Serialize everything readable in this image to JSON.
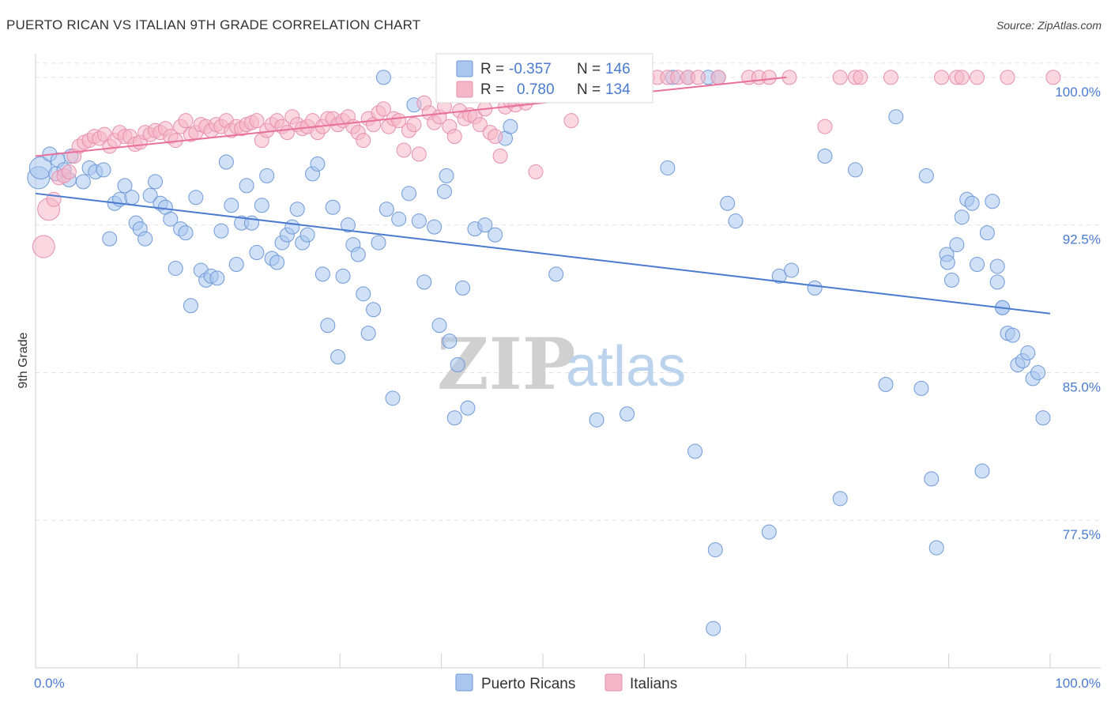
{
  "title": "PUERTO RICAN VS ITALIAN 9TH GRADE CORRELATION CHART",
  "source": "Source: ZipAtlas.com",
  "watermark": {
    "zip": "ZIP",
    "atlas": "atlas"
  },
  "legend": {
    "row1": {
      "r_label": "R =",
      "r_value": "-0.357",
      "n_label": "N =",
      "n_value": "146"
    },
    "row2": {
      "r_label": "R =",
      "r_value": "0.780",
      "n_label": "N =",
      "n_value": "134"
    }
  },
  "bottom_legend": {
    "series1": "Puerto Ricans",
    "series2": "Italians"
  },
  "colors": {
    "blue": "#4a7bd0",
    "blue_fill": "#a9c6ef",
    "pink": "#e8709a",
    "pink_fill": "#f5b6c9",
    "grid": "#e2e2e2"
  },
  "chart_data": {
    "type": "scatter",
    "title": "PUERTO RICAN VS ITALIAN 9TH GRADE CORRELATION CHART",
    "xlabel": "",
    "ylabel": "9th Grade",
    "xlim": [
      0,
      100
    ],
    "ylim": [
      70.0,
      101.2
    ],
    "x_tick_labels": [
      "0.0%",
      "100.0%"
    ],
    "y_ticks": [
      {
        "value": 100.0,
        "label": "100.0%"
      },
      {
        "value": 92.5,
        "label": "92.5%"
      },
      {
        "value": 85.0,
        "label": "85.0%"
      },
      {
        "value": 77.5,
        "label": "77.5%"
      }
    ],
    "grid": true,
    "series": [
      {
        "name": "Puerto Ricans",
        "trend": {
          "x": [
            0,
            100
          ],
          "y": [
            94.1,
            88.0
          ]
        },
        "points": [
          [
            0.3,
            94.9
          ],
          [
            0.5,
            95.4
          ],
          [
            1.4,
            96.1
          ],
          [
            2.0,
            95.1
          ],
          [
            2.2,
            95.8
          ],
          [
            2.8,
            95.3
          ],
          [
            3.3,
            94.8
          ],
          [
            3.5,
            96.0
          ],
          [
            4.7,
            94.7
          ],
          [
            5.3,
            95.4
          ],
          [
            5.9,
            95.2
          ],
          [
            6.7,
            95.3
          ],
          [
            7.3,
            91.8
          ],
          [
            7.8,
            93.6
          ],
          [
            8.3,
            93.8
          ],
          [
            8.8,
            94.5
          ],
          [
            9.5,
            93.9
          ],
          [
            9.9,
            92.6
          ],
          [
            10.3,
            92.3
          ],
          [
            10.8,
            91.8
          ],
          [
            11.3,
            94.0
          ],
          [
            11.8,
            94.7
          ],
          [
            12.3,
            93.6
          ],
          [
            12.8,
            93.4
          ],
          [
            13.3,
            92.8
          ],
          [
            13.8,
            90.3
          ],
          [
            14.3,
            92.3
          ],
          [
            14.8,
            92.1
          ],
          [
            15.3,
            88.4
          ],
          [
            15.8,
            93.9
          ],
          [
            16.3,
            90.2
          ],
          [
            16.8,
            89.7
          ],
          [
            17.3,
            89.9
          ],
          [
            17.9,
            89.8
          ],
          [
            18.3,
            92.2
          ],
          [
            18.8,
            95.7
          ],
          [
            19.3,
            93.5
          ],
          [
            19.8,
            90.5
          ],
          [
            20.3,
            92.6
          ],
          [
            20.8,
            94.5
          ],
          [
            21.3,
            92.6
          ],
          [
            21.8,
            91.1
          ],
          [
            22.3,
            93.5
          ],
          [
            22.8,
            95.0
          ],
          [
            23.3,
            90.8
          ],
          [
            23.8,
            90.6
          ],
          [
            24.3,
            91.6
          ],
          [
            24.8,
            92.0
          ],
          [
            25.3,
            92.4
          ],
          [
            25.8,
            93.3
          ],
          [
            26.3,
            91.6
          ],
          [
            26.8,
            92.0
          ],
          [
            27.3,
            95.1
          ],
          [
            27.8,
            95.6
          ],
          [
            28.3,
            90.0
          ],
          [
            28.8,
            87.4
          ],
          [
            29.3,
            93.4
          ],
          [
            29.8,
            85.8
          ],
          [
            30.3,
            89.9
          ],
          [
            30.8,
            92.5
          ],
          [
            31.3,
            91.5
          ],
          [
            31.8,
            91.0
          ],
          [
            32.3,
            89.0
          ],
          [
            32.8,
            87.0
          ],
          [
            33.3,
            88.2
          ],
          [
            33.8,
            91.6
          ],
          [
            34.3,
            100.0
          ],
          [
            34.6,
            93.3
          ],
          [
            35.2,
            83.7
          ],
          [
            35.8,
            92.8
          ],
          [
            36.8,
            94.1
          ],
          [
            37.3,
            98.6
          ],
          [
            37.8,
            92.7
          ],
          [
            38.3,
            89.6
          ],
          [
            39.3,
            92.4
          ],
          [
            39.8,
            87.4
          ],
          [
            40.3,
            94.2
          ],
          [
            40.5,
            95.0
          ],
          [
            40.8,
            86.6
          ],
          [
            41.3,
            82.7
          ],
          [
            41.6,
            85.4
          ],
          [
            42.1,
            89.3
          ],
          [
            42.6,
            83.2
          ],
          [
            43.3,
            92.3
          ],
          [
            44.3,
            92.5
          ],
          [
            45.3,
            92.0
          ],
          [
            46.3,
            96.9
          ],
          [
            46.8,
            97.5
          ],
          [
            51.3,
            90.0
          ],
          [
            55.3,
            82.6
          ],
          [
            56.8,
            100.0
          ],
          [
            58.3,
            82.9
          ],
          [
            62.3,
            95.4
          ],
          [
            62.8,
            100.0
          ],
          [
            64.3,
            100.0
          ],
          [
            65.0,
            81.0
          ],
          [
            66.3,
            100.0
          ],
          [
            66.8,
            72.0
          ],
          [
            67.0,
            76.0
          ],
          [
            67.3,
            100.0
          ],
          [
            68.2,
            93.6
          ],
          [
            69.0,
            92.7
          ],
          [
            72.3,
            76.9
          ],
          [
            73.3,
            89.9
          ],
          [
            74.5,
            90.2
          ],
          [
            76.8,
            89.3
          ],
          [
            77.8,
            96.0
          ],
          [
            79.3,
            78.6
          ],
          [
            80.8,
            95.3
          ],
          [
            83.8,
            84.4
          ],
          [
            84.8,
            98.0
          ],
          [
            87.3,
            84.2
          ],
          [
            87.8,
            95.0
          ],
          [
            88.3,
            79.6
          ],
          [
            88.8,
            76.1
          ],
          [
            89.8,
            91.0
          ],
          [
            89.9,
            90.6
          ],
          [
            90.3,
            89.7
          ],
          [
            90.8,
            91.5
          ],
          [
            91.3,
            92.9
          ],
          [
            91.8,
            93.8
          ],
          [
            92.3,
            93.6
          ],
          [
            92.8,
            90.5
          ],
          [
            93.3,
            80.0
          ],
          [
            93.8,
            92.1
          ],
          [
            94.3,
            93.7
          ],
          [
            94.8,
            89.6
          ],
          [
            95.3,
            88.3
          ],
          [
            95.8,
            87.0
          ],
          [
            96.3,
            86.9
          ],
          [
            96.8,
            85.4
          ],
          [
            97.3,
            85.6
          ],
          [
            97.8,
            86.0
          ],
          [
            98.3,
            84.7
          ],
          [
            98.8,
            85.0
          ],
          [
            99.3,
            82.7
          ],
          [
            94.8,
            90.4
          ],
          [
            95.3,
            88.3
          ]
        ]
      },
      {
        "name": "Italians",
        "trend": {
          "x": [
            0,
            74
          ],
          "y": [
            96.0,
            100.0
          ]
        },
        "points": [
          [
            0.8,
            91.4
          ],
          [
            1.3,
            93.3
          ],
          [
            1.8,
            93.8
          ],
          [
            2.3,
            94.9
          ],
          [
            2.8,
            95.0
          ],
          [
            3.3,
            95.2
          ],
          [
            3.8,
            96.0
          ],
          [
            4.3,
            96.5
          ],
          [
            4.8,
            96.7
          ],
          [
            5.3,
            96.8
          ],
          [
            5.8,
            97.0
          ],
          [
            6.3,
            96.9
          ],
          [
            6.8,
            97.1
          ],
          [
            7.3,
            96.5
          ],
          [
            7.8,
            96.8
          ],
          [
            8.3,
            97.2
          ],
          [
            8.8,
            97.0
          ],
          [
            9.3,
            97.0
          ],
          [
            9.8,
            96.6
          ],
          [
            10.3,
            96.7
          ],
          [
            10.8,
            97.2
          ],
          [
            11.3,
            97.1
          ],
          [
            11.8,
            97.3
          ],
          [
            12.3,
            97.2
          ],
          [
            12.8,
            97.4
          ],
          [
            13.3,
            97.0
          ],
          [
            13.8,
            96.8
          ],
          [
            14.3,
            97.5
          ],
          [
            14.8,
            97.8
          ],
          [
            15.3,
            97.1
          ],
          [
            15.8,
            97.2
          ],
          [
            16.3,
            97.6
          ],
          [
            16.8,
            97.5
          ],
          [
            17.3,
            97.3
          ],
          [
            17.8,
            97.6
          ],
          [
            18.3,
            97.5
          ],
          [
            18.8,
            97.8
          ],
          [
            19.3,
            97.3
          ],
          [
            19.8,
            97.5
          ],
          [
            20.3,
            97.4
          ],
          [
            20.8,
            97.6
          ],
          [
            21.3,
            97.7
          ],
          [
            21.8,
            97.8
          ],
          [
            22.3,
            96.8
          ],
          [
            22.8,
            97.3
          ],
          [
            23.3,
            97.6
          ],
          [
            23.8,
            97.8
          ],
          [
            24.3,
            97.5
          ],
          [
            24.8,
            97.2
          ],
          [
            25.3,
            98.0
          ],
          [
            25.8,
            97.6
          ],
          [
            26.3,
            97.4
          ],
          [
            26.8,
            97.5
          ],
          [
            27.3,
            97.8
          ],
          [
            27.8,
            97.2
          ],
          [
            28.3,
            97.5
          ],
          [
            28.8,
            97.9
          ],
          [
            29.3,
            97.9
          ],
          [
            29.8,
            97.6
          ],
          [
            30.3,
            97.8
          ],
          [
            30.8,
            98.0
          ],
          [
            31.3,
            97.5
          ],
          [
            31.8,
            97.2
          ],
          [
            32.3,
            96.8
          ],
          [
            32.8,
            97.9
          ],
          [
            33.3,
            97.6
          ],
          [
            33.8,
            98.2
          ],
          [
            34.3,
            98.4
          ],
          [
            34.8,
            97.5
          ],
          [
            35.3,
            97.9
          ],
          [
            35.8,
            97.8
          ],
          [
            36.3,
            96.3
          ],
          [
            36.8,
            97.3
          ],
          [
            37.3,
            97.6
          ],
          [
            37.8,
            96.1
          ],
          [
            38.3,
            98.7
          ],
          [
            38.8,
            98.2
          ],
          [
            39.3,
            97.7
          ],
          [
            39.8,
            98.0
          ],
          [
            40.3,
            98.5
          ],
          [
            40.8,
            97.5
          ],
          [
            41.3,
            97.0
          ],
          [
            41.8,
            98.3
          ],
          [
            42.3,
            97.9
          ],
          [
            42.8,
            98.1
          ],
          [
            43.3,
            98.0
          ],
          [
            43.8,
            97.6
          ],
          [
            44.3,
            98.4
          ],
          [
            44.8,
            97.2
          ],
          [
            45.3,
            97.0
          ],
          [
            45.8,
            96.0
          ],
          [
            46.3,
            98.5
          ],
          [
            46.8,
            98.8
          ],
          [
            47.3,
            98.6
          ],
          [
            47.8,
            98.9
          ],
          [
            48.3,
            98.7
          ],
          [
            48.8,
            99.0
          ],
          [
            49.3,
            95.2
          ],
          [
            49.8,
            99.1
          ],
          [
            50.3,
            99.2
          ],
          [
            50.8,
            99.2
          ],
          [
            51.3,
            99.4
          ],
          [
            51.8,
            99.3
          ],
          [
            52.3,
            100.0
          ],
          [
            52.8,
            97.8
          ],
          [
            53.3,
            100.0
          ],
          [
            53.8,
            99.5
          ],
          [
            54.3,
            100.0
          ],
          [
            54.8,
            100.0
          ],
          [
            55.3,
            100.0
          ],
          [
            56.3,
            100.0
          ],
          [
            57.3,
            100.0
          ],
          [
            58.3,
            100.0
          ],
          [
            59.3,
            100.0
          ],
          [
            60.3,
            100.0
          ],
          [
            61.3,
            100.0
          ],
          [
            62.3,
            100.0
          ],
          [
            63.3,
            100.0
          ],
          [
            64.3,
            100.0
          ],
          [
            65.3,
            100.0
          ],
          [
            67.3,
            100.0
          ],
          [
            70.3,
            100.0
          ],
          [
            71.3,
            100.0
          ],
          [
            72.3,
            100.0
          ],
          [
            74.3,
            100.0
          ],
          [
            77.8,
            97.5
          ],
          [
            79.3,
            100.0
          ],
          [
            80.8,
            100.0
          ],
          [
            81.3,
            100.0
          ],
          [
            84.3,
            100.0
          ],
          [
            89.3,
            100.0
          ],
          [
            90.8,
            100.0
          ],
          [
            91.3,
            100.0
          ],
          [
            92.8,
            100.0
          ],
          [
            95.8,
            100.0
          ],
          [
            100.3,
            100.0
          ]
        ]
      }
    ]
  }
}
